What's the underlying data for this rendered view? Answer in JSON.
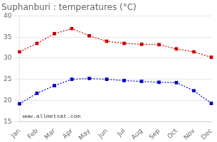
{
  "chart_data": {
    "type": "line",
    "title": "Suphanburi : temperatures (°C)",
    "categories": [
      "Jan",
      "Feb",
      "Mar",
      "Apr",
      "May",
      "Jun",
      "Jul",
      "Aug",
      "Sep",
      "Oct",
      "Nov",
      "Dec"
    ],
    "series": [
      {
        "color": "#cc0000",
        "marker": "square",
        "line_style": "dotted",
        "values": [
          31.5,
          33.5,
          35.8,
          37.0,
          35.3,
          34.0,
          33.5,
          33.3,
          33.2,
          32.2,
          31.5,
          30.2
        ]
      },
      {
        "color": "#0000cc",
        "marker": "square",
        "line_style": "dotted",
        "values": [
          19.2,
          21.7,
          23.5,
          25.0,
          25.2,
          25.0,
          24.7,
          24.5,
          24.3,
          24.2,
          22.3,
          19.3
        ]
      }
    ],
    "ylim": [
      15,
      40
    ],
    "yticks": [
      15,
      20,
      25,
      30,
      35,
      40
    ],
    "grid": "y",
    "annotations": [
      "www.allmetsat.com"
    ]
  }
}
